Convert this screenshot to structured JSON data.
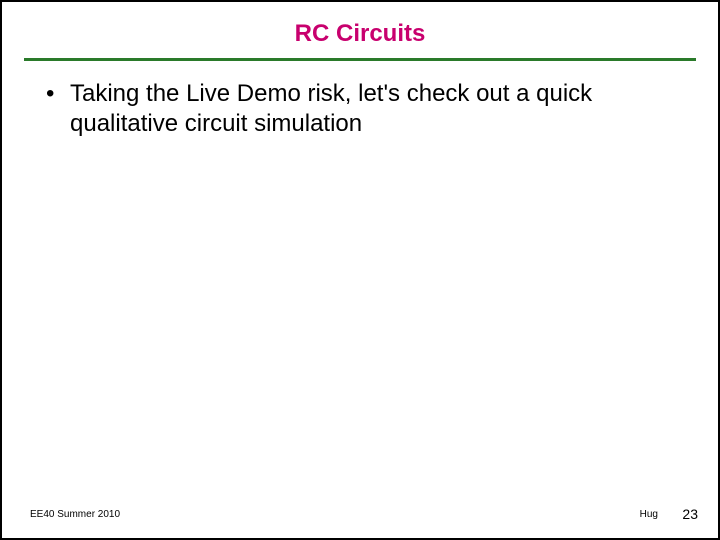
{
  "title": {
    "text": "RC Circuits",
    "color": "#c8006e",
    "fontsize": 24
  },
  "divider": {
    "color": "#2a7a2a",
    "thickness": 3
  },
  "body": {
    "bullets": [
      "Taking the Live Demo risk, let's check out a quick qualitative circuit simulation"
    ],
    "fontsize": 24,
    "color": "#000000"
  },
  "footer": {
    "left": "EE40 Summer 2010",
    "author": "Hug",
    "page": "23",
    "fontsize_small": 10,
    "fontsize_page": 14,
    "color": "#000000"
  },
  "background_color": "#ffffff"
}
